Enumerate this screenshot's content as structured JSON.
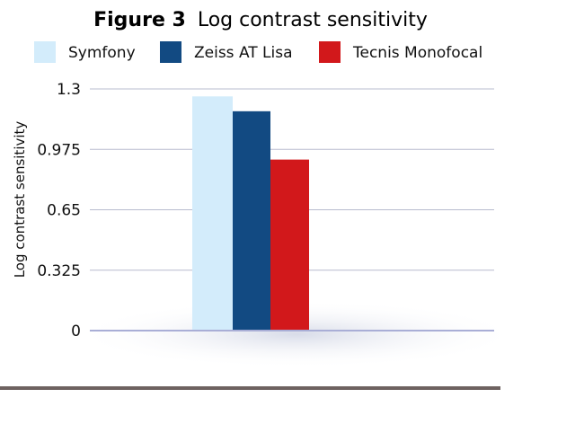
{
  "chart_data": {
    "type": "bar",
    "title_prefix": "Figure 3",
    "title_rest": "Log contrast sensitivity",
    "ylabel": "Log contrast sensitivity",
    "ylim": [
      0,
      1.3
    ],
    "yticks": [
      0,
      0.325,
      0.65,
      0.975,
      1.3
    ],
    "ytick_labels": [
      "0",
      "0.325",
      "0.65",
      "0.975",
      "1.3"
    ],
    "grid": true,
    "legend_position": "top",
    "categories": [
      ""
    ],
    "series": [
      {
        "name": "Symfony",
        "color": "#d3ecfb",
        "values": [
          1.26
        ]
      },
      {
        "name": "Zeiss AT Lisa",
        "color": "#124a82",
        "values": [
          1.18
        ]
      },
      {
        "name": "Tecnis Monofocal",
        "color": "#d2181b",
        "values": [
          0.92
        ]
      }
    ]
  }
}
